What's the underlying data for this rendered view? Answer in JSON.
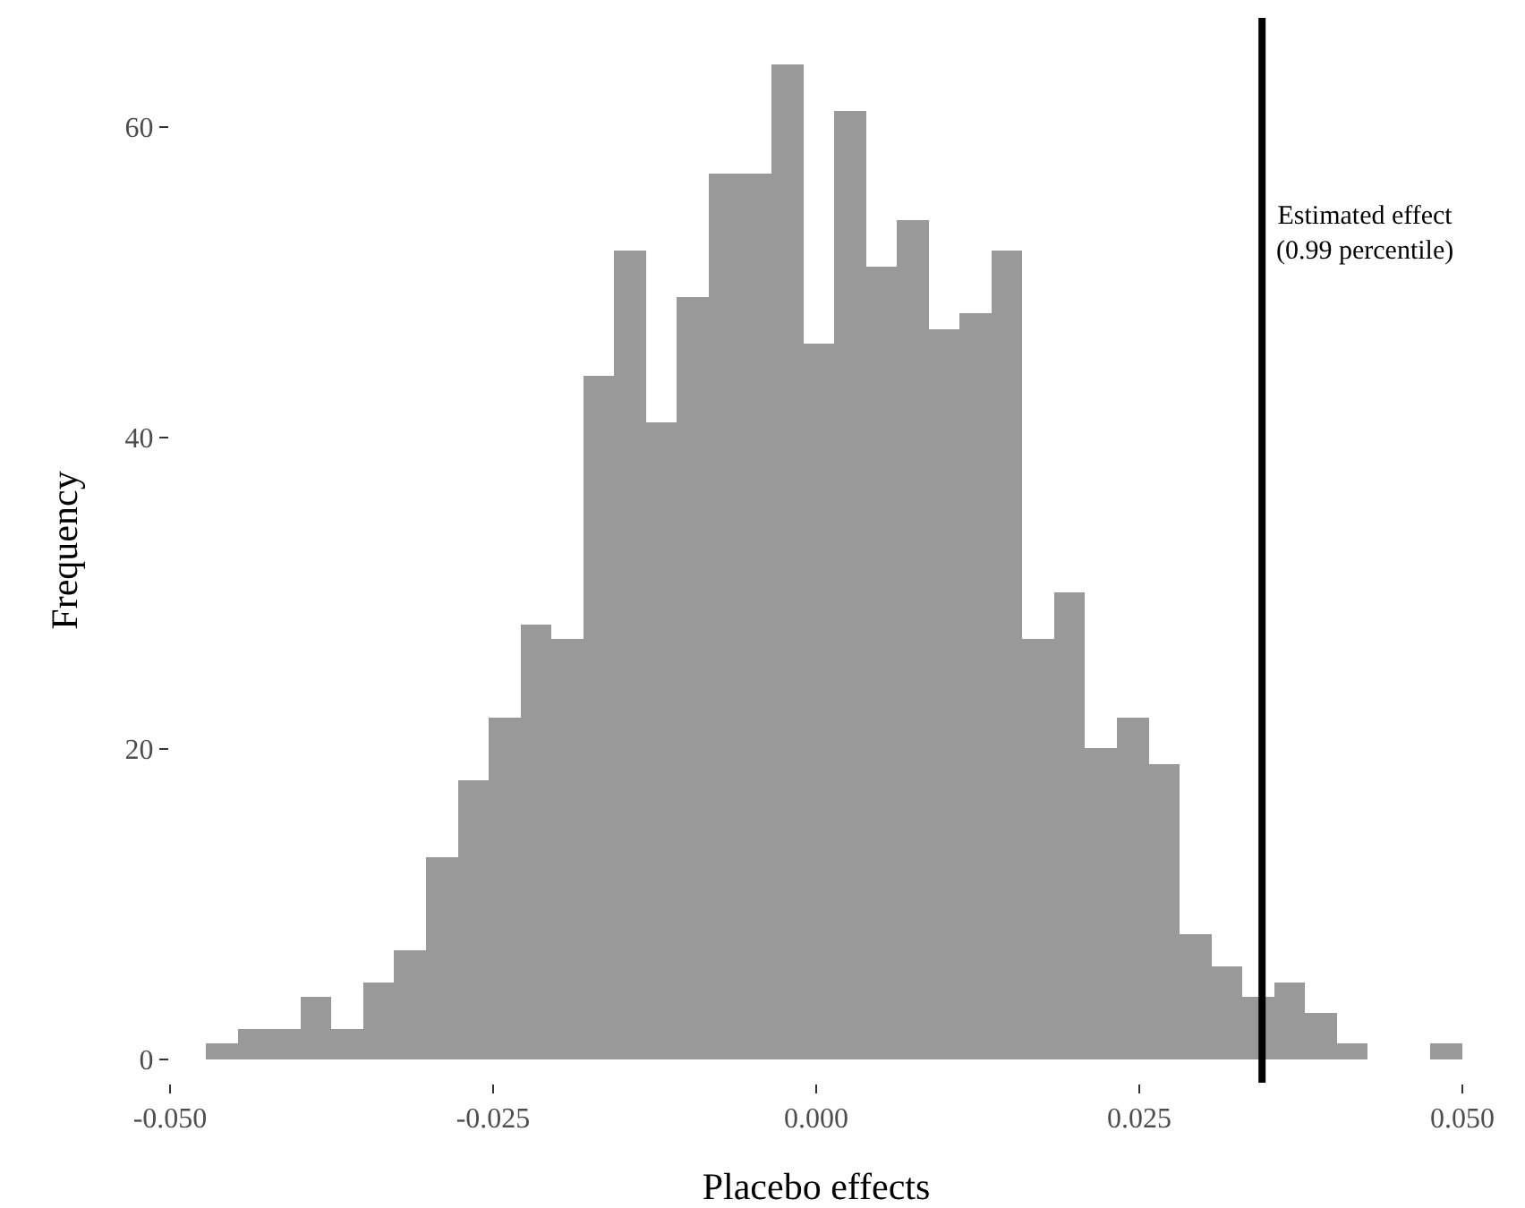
{
  "chart_data": {
    "type": "histogram",
    "xlabel": "Placebo effects",
    "ylabel": "Frequency",
    "bins": [
      -0.0472,
      -0.04477,
      -0.04234,
      -0.03991,
      -0.03748,
      -0.03505,
      -0.03262,
      -0.03019,
      -0.02776,
      -0.02533,
      -0.0229,
      -0.02047,
      -0.01804,
      -0.01561,
      -0.01318,
      -0.01075,
      -0.00832,
      -0.00589,
      -0.00346,
      -0.00103,
      0.0014,
      0.00383,
      0.00626,
      0.00869,
      0.01112,
      0.01355,
      0.01598,
      0.01841,
      0.02084,
      0.02327,
      0.0257,
      0.02813,
      0.03056,
      0.03299,
      0.03542,
      0.03785,
      0.04028,
      0.04271,
      0.04514,
      0.04757,
      0.05
    ],
    "values": [
      1,
      2,
      2,
      4,
      2,
      5,
      7,
      13,
      18,
      22,
      28,
      27,
      44,
      52,
      41,
      49,
      57,
      57,
      64,
      46,
      61,
      51,
      54,
      47,
      48,
      52,
      27,
      30,
      20,
      22,
      19,
      8,
      6,
      4,
      5,
      3,
      1,
      0,
      0,
      1
    ],
    "color": "#999999",
    "xlim": [
      -0.05,
      0.05
    ],
    "xticks": [
      {
        "value": -0.05,
        "label": "-0.050"
      },
      {
        "value": -0.025,
        "label": "-0.025"
      },
      {
        "value": 0,
        "label": "0.000"
      },
      {
        "value": 0.025,
        "label": "0.025"
      },
      {
        "value": 0.05,
        "label": "0.050"
      }
    ],
    "ylim": [
      -1.5,
      67
    ],
    "yticks": [
      0,
      20,
      40,
      60
    ],
    "grid": false,
    "legend": false,
    "ref_lines": [
      {
        "axis": "x",
        "value": 0.0345,
        "label": "Estimated effect\n(0.99 percentile)",
        "color": "#000000",
        "line_style": "solid"
      }
    ]
  }
}
